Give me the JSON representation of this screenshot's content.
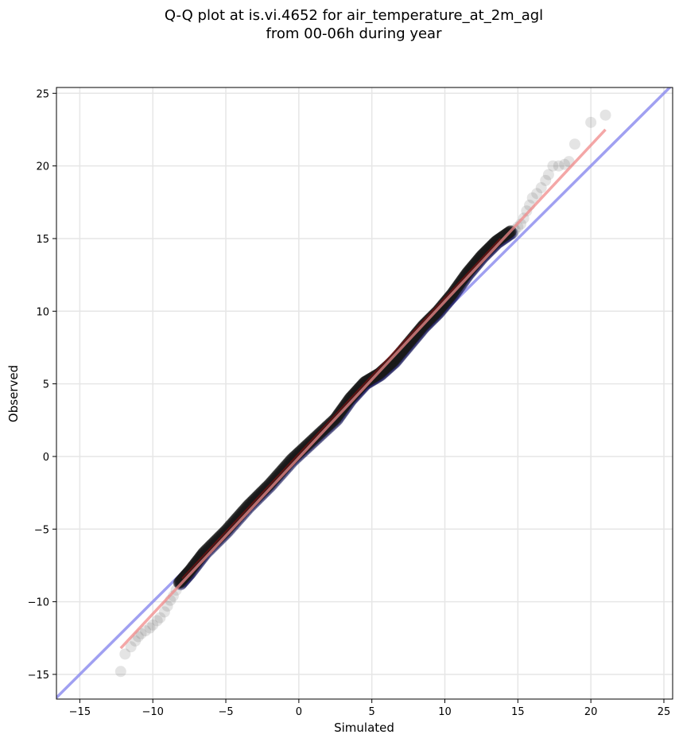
{
  "chart_data": {
    "type": "scatter",
    "title_line1": "Q-Q plot at is.vi.4652 for air_temperature_at_2m_agl",
    "title_line2": "from 00-06h during year",
    "xlabel": "Simulated",
    "ylabel": "Observed",
    "xlim": [
      -16.6,
      25.6
    ],
    "ylim": [
      -16.7,
      25.4
    ],
    "grid": true,
    "x_ticks": [
      -15,
      -10,
      -5,
      0,
      5,
      10,
      15,
      20,
      25
    ],
    "y_ticks": [
      -15,
      -10,
      -5,
      0,
      5,
      10,
      15,
      20,
      25
    ],
    "x_tick_labels": [
      "−15",
      "−10",
      "−5",
      "0",
      "5",
      "10",
      "15",
      "20",
      "25"
    ],
    "y_tick_labels": [
      "−15",
      "−10",
      "−5",
      "0",
      "5",
      "10",
      "15",
      "20",
      "25"
    ],
    "reference_line": {
      "color": "#8888ee",
      "points": [
        [
          -16.6,
          -16.6
        ],
        [
          25.6,
          25.6
        ]
      ]
    },
    "fit_line": {
      "color": "#f08a8a",
      "points": [
        [
          -12.2,
          -13.2
        ],
        [
          21.0,
          22.5
        ]
      ]
    },
    "core_curve": {
      "color": "#1a1a1a",
      "points": [
        [
          -8.2,
          -8.7
        ],
        [
          -7.5,
          -7.9
        ],
        [
          -6.5,
          -6.6
        ],
        [
          -5.0,
          -5.1
        ],
        [
          -3.5,
          -3.4
        ],
        [
          -2.0,
          -1.9
        ],
        [
          -0.5,
          -0.2
        ],
        [
          1.0,
          1.2
        ],
        [
          2.5,
          2.6
        ],
        [
          3.5,
          4.0
        ],
        [
          4.5,
          5.1
        ],
        [
          5.5,
          5.7
        ],
        [
          6.5,
          6.6
        ],
        [
          7.5,
          7.8
        ],
        [
          8.5,
          9.0
        ],
        [
          9.5,
          10.0
        ],
        [
          10.5,
          11.2
        ],
        [
          11.5,
          12.6
        ],
        [
          12.5,
          13.8
        ],
        [
          13.5,
          14.8
        ],
        [
          14.5,
          15.5
        ]
      ]
    },
    "tail_points": {
      "color": "#aaaaaa",
      "points": [
        [
          -12.2,
          -14.8
        ],
        [
          -11.9,
          -13.6
        ],
        [
          -11.5,
          -13.1
        ],
        [
          -11.2,
          -12.7
        ],
        [
          -11.0,
          -12.4
        ],
        [
          -10.8,
          -12.2
        ],
        [
          -10.5,
          -12.0
        ],
        [
          -10.2,
          -11.8
        ],
        [
          -10.0,
          -11.6
        ],
        [
          -9.7,
          -11.3
        ],
        [
          -9.5,
          -11.1
        ],
        [
          -9.2,
          -10.7
        ],
        [
          -9.0,
          -10.3
        ],
        [
          -8.8,
          -9.9
        ],
        [
          -8.6,
          -9.6
        ],
        [
          -8.4,
          -9.2
        ],
        [
          -8.2,
          -8.7
        ],
        [
          14.5,
          15.4
        ],
        [
          14.8,
          15.6
        ],
        [
          15.0,
          15.8
        ],
        [
          15.2,
          16.0
        ],
        [
          15.4,
          16.4
        ],
        [
          15.6,
          16.9
        ],
        [
          15.8,
          17.3
        ],
        [
          16.0,
          17.8
        ],
        [
          16.3,
          18.1
        ],
        [
          16.6,
          18.5
        ],
        [
          16.9,
          19.0
        ],
        [
          17.1,
          19.4
        ],
        [
          17.4,
          20.0
        ],
        [
          17.8,
          20.0
        ],
        [
          18.2,
          20.1
        ],
        [
          18.5,
          20.3
        ],
        [
          18.9,
          21.5
        ],
        [
          20.0,
          23.0
        ],
        [
          21.0,
          23.5
        ]
      ]
    }
  }
}
